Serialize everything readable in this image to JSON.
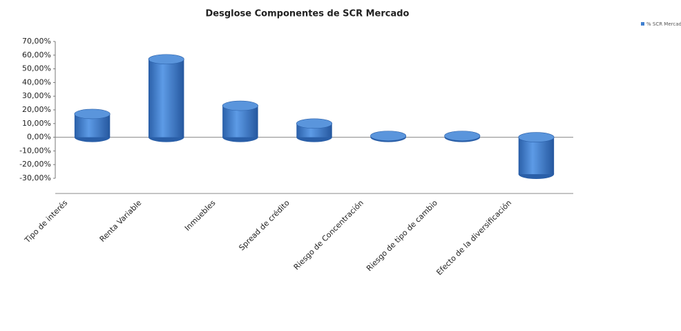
{
  "chart_data": {
    "type": "bar",
    "title": "Desglose Componentes de SCR Mercado",
    "categories": [
      "Tipo de interés",
      "Renta Variable",
      "Inmuebles",
      "Spread de crédito",
      "Riesgo de Concentración",
      "Riesgo de tipo de cambio",
      "Efecto de la diversificación"
    ],
    "series": [
      {
        "name": "% SCR Mercado",
        "color": "#3f7fd0",
        "values": [
          17,
          57,
          23,
          10,
          1,
          1,
          -27
        ]
      }
    ],
    "ylim": [
      -30,
      70
    ],
    "yticks": [
      {
        "value": -30,
        "label": "-30,00%"
      },
      {
        "value": -20,
        "label": "-20,00%"
      },
      {
        "value": -10,
        "label": "-10,00%"
      },
      {
        "value": 0,
        "label": "0,00%"
      },
      {
        "value": 10,
        "label": "10,00%"
      },
      {
        "value": 20,
        "label": "20,00%"
      },
      {
        "value": 30,
        "label": "30,00%"
      },
      {
        "value": 40,
        "label": "40,00%"
      },
      {
        "value": 50,
        "label": "50,00%"
      },
      {
        "value": 60,
        "label": "60,00%"
      },
      {
        "value": 70,
        "label": "70,00%"
      }
    ],
    "grid": false,
    "legend": "top-right"
  }
}
